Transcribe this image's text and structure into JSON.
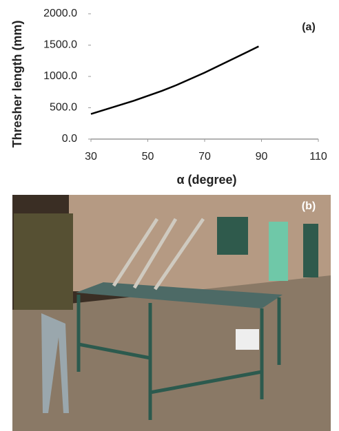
{
  "chart_data": {
    "type": "line",
    "annotation": "(a)",
    "x_label": "α (degree)",
    "y_label": "Thresher length (mm)",
    "x": [
      30,
      35,
      40,
      45,
      50,
      55,
      60,
      65,
      70,
      75,
      80,
      85,
      89
    ],
    "values": [
      400,
      470,
      540,
      610,
      690,
      770,
      860,
      960,
      1060,
      1170,
      1280,
      1390,
      1480
    ],
    "color": "#000000",
    "xlim": [
      30,
      110
    ],
    "xticks": [
      30,
      50,
      70,
      90,
      110
    ],
    "ylim": [
      0,
      2000
    ],
    "yticks": [
      {
        "value": 0,
        "label": "0.0"
      },
      {
        "value": 500,
        "label": "500.0"
      },
      {
        "value": 1000,
        "label": "1000.0"
      },
      {
        "value": 1500,
        "label": "1500.0"
      },
      {
        "value": 2000,
        "label": "2000.0"
      }
    ],
    "grid": false
  },
  "photo": {
    "label": "(b)"
  }
}
